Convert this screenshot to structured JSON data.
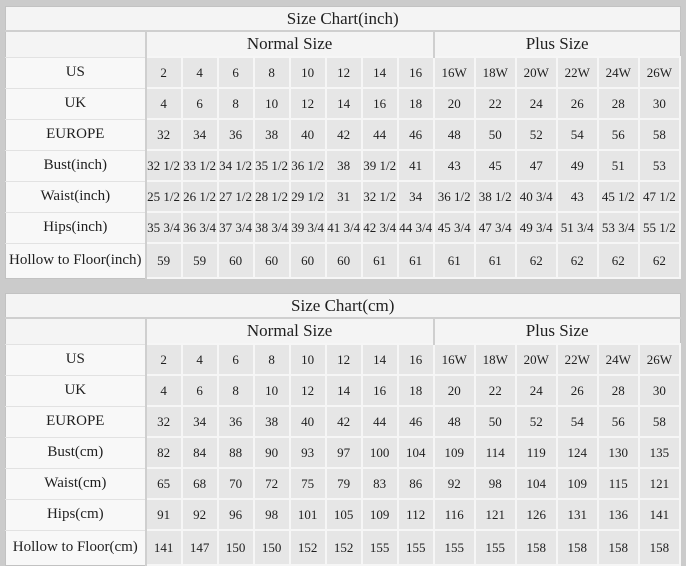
{
  "colors": {
    "page_background": "#cbcbcb",
    "panel_background": "#f6f6f6",
    "data_cell_background": "#e6e6e6",
    "label_cell_background": "#f8f8f8",
    "divider": "#cfcfcf",
    "text": "#1f1f1f"
  },
  "chart_data": [
    {
      "type": "table",
      "title": "Size Chart(inch)",
      "group_headers": [
        "Normal Size",
        "Plus Size"
      ],
      "normal_size_columns": 8,
      "plus_size_columns": 6,
      "rows": [
        {
          "label": "US",
          "values": [
            "2",
            "4",
            "6",
            "8",
            "10",
            "12",
            "14",
            "16",
            "16W",
            "18W",
            "20W",
            "22W",
            "24W",
            "26W"
          ]
        },
        {
          "label": "UK",
          "values": [
            "4",
            "6",
            "8",
            "10",
            "12",
            "14",
            "16",
            "18",
            "20",
            "22",
            "24",
            "26",
            "28",
            "30"
          ]
        },
        {
          "label": "EUROPE",
          "values": [
            "32",
            "34",
            "36",
            "38",
            "40",
            "42",
            "44",
            "46",
            "48",
            "50",
            "52",
            "54",
            "56",
            "58"
          ]
        },
        {
          "label": "Bust(inch)",
          "values": [
            "32 1/2",
            "33 1/2",
            "34 1/2",
            "35 1/2",
            "36 1/2",
            "38",
            "39 1/2",
            "41",
            "43",
            "45",
            "47",
            "49",
            "51",
            "53"
          ]
        },
        {
          "label": "Waist(inch)",
          "values": [
            "25 1/2",
            "26 1/2",
            "27 1/2",
            "28 1/2",
            "29 1/2",
            "31",
            "32 1/2",
            "34",
            "36 1/2",
            "38 1/2",
            "40 3/4",
            "43",
            "45 1/2",
            "47 1/2"
          ]
        },
        {
          "label": "Hips(inch)",
          "values": [
            "35 3/4",
            "36 3/4",
            "37 3/4",
            "38 3/4",
            "39 3/4",
            "41 3/4",
            "42 3/4",
            "44 3/4",
            "45 3/4",
            "47 3/4",
            "49 3/4",
            "51 3/4",
            "53 3/4",
            "55 1/2"
          ]
        },
        {
          "label": "Hollow to Floor(inch)",
          "values": [
            "59",
            "59",
            "60",
            "60",
            "60",
            "60",
            "61",
            "61",
            "61",
            "61",
            "62",
            "62",
            "62",
            "62"
          ]
        }
      ]
    },
    {
      "type": "table",
      "title": "Size Chart(cm)",
      "group_headers": [
        "Normal Size",
        "Plus Size"
      ],
      "normal_size_columns": 8,
      "plus_size_columns": 6,
      "rows": [
        {
          "label": "US",
          "values": [
            "2",
            "4",
            "6",
            "8",
            "10",
            "12",
            "14",
            "16",
            "16W",
            "18W",
            "20W",
            "22W",
            "24W",
            "26W"
          ]
        },
        {
          "label": "UK",
          "values": [
            "4",
            "6",
            "8",
            "10",
            "12",
            "14",
            "16",
            "18",
            "20",
            "22",
            "24",
            "26",
            "28",
            "30"
          ]
        },
        {
          "label": "EUROPE",
          "values": [
            "32",
            "34",
            "36",
            "38",
            "40",
            "42",
            "44",
            "46",
            "48",
            "50",
            "52",
            "54",
            "56",
            "58"
          ]
        },
        {
          "label": "Bust(cm)",
          "values": [
            "82",
            "84",
            "88",
            "90",
            "93",
            "97",
            "100",
            "104",
            "109",
            "114",
            "119",
            "124",
            "130",
            "135"
          ]
        },
        {
          "label": "Waist(cm)",
          "values": [
            "65",
            "68",
            "70",
            "72",
            "75",
            "79",
            "83",
            "86",
            "92",
            "98",
            "104",
            "109",
            "115",
            "121"
          ]
        },
        {
          "label": "Hips(cm)",
          "values": [
            "91",
            "92",
            "96",
            "98",
            "101",
            "105",
            "109",
            "112",
            "116",
            "121",
            "126",
            "131",
            "136",
            "141"
          ]
        },
        {
          "label": "Hollow to Floor(cm)",
          "values": [
            "141",
            "147",
            "150",
            "150",
            "152",
            "152",
            "155",
            "155",
            "155",
            "155",
            "158",
            "158",
            "158",
            "158"
          ]
        }
      ]
    }
  ]
}
